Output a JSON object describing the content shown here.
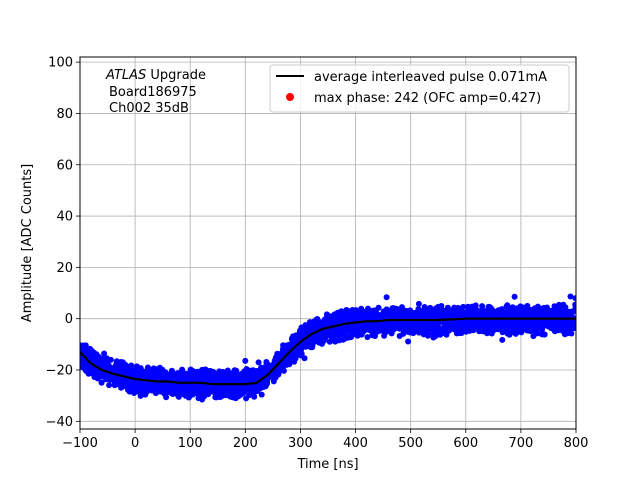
{
  "chart_data": {
    "type": "scatter",
    "title": "",
    "xlabel": "Time [ns]",
    "ylabel": "Amplitude [ADC Counts]",
    "xlim": [
      -100,
      800
    ],
    "ylim": [
      -43,
      102
    ],
    "grid": true,
    "xticks": [
      -100,
      0,
      100,
      200,
      300,
      400,
      500,
      600,
      700,
      800
    ],
    "yticks": [
      -40,
      -20,
      0,
      20,
      40,
      60,
      80,
      100
    ],
    "xtick_labels": [
      "−100",
      "0",
      "100",
      "200",
      "300",
      "400",
      "500",
      "600",
      "700",
      "800"
    ],
    "ytick_labels": [
      "−40",
      "−20",
      "0",
      "20",
      "40",
      "60",
      "80",
      "100"
    ],
    "annotation": {
      "line1_italic": "ATLAS",
      "line1_rest": " Upgrade",
      "line2": "Board186975",
      "line3": "Ch002 35dB"
    },
    "legend_placement": "top-right",
    "series": [
      {
        "name": "average interleaved pulse 0.071mA",
        "kind": "line",
        "color": "#000000",
        "x": [
          -100,
          -80,
          -60,
          -40,
          -20,
          0,
          20,
          40,
          60,
          80,
          100,
          120,
          140,
          160,
          180,
          200,
          220,
          240,
          260,
          280,
          300,
          320,
          340,
          360,
          380,
          400,
          420,
          440,
          460,
          480,
          500,
          550,
          600,
          650,
          700,
          750,
          800
        ],
        "y": [
          -13,
          -17.5,
          -20,
          -21.5,
          -22.5,
          -23.5,
          -24,
          -24.5,
          -24.5,
          -25,
          -25,
          -25,
          -25.5,
          -25.5,
          -25.5,
          -25.5,
          -25,
          -22,
          -17.5,
          -13,
          -9,
          -6,
          -4,
          -3,
          -2,
          -1.5,
          -1,
          -1,
          -0.5,
          -0.5,
          -0.5,
          -0.5,
          0,
          0,
          0,
          0,
          0
        ]
      },
      {
        "name": "",
        "kind": "scatter-band",
        "color": "#0000ff",
        "description_points": "dense measured samples around the average pulse",
        "x": [
          -100,
          -80,
          -60,
          -40,
          -20,
          0,
          20,
          40,
          60,
          80,
          100,
          120,
          140,
          160,
          180,
          200,
          220,
          240,
          260,
          280,
          300,
          320,
          340,
          360,
          380,
          400,
          420,
          440,
          460,
          480,
          500,
          550,
          600,
          650,
          700,
          750,
          800
        ],
        "y_low": [
          -19,
          -23,
          -26,
          -28,
          -29,
          -30,
          -30.5,
          -31,
          -31,
          -31.5,
          -32,
          -32,
          -32,
          -32,
          -32,
          -32,
          -31.5,
          -28.5,
          -24,
          -19.5,
          -15.5,
          -12.5,
          -10.5,
          -9.5,
          -8.5,
          -8,
          -7.5,
          -7.5,
          -7,
          -7,
          -7,
          -7,
          -6.5,
          -6.5,
          -6.5,
          -6.5,
          -6.5
        ],
        "y_high": [
          -7,
          -11.5,
          -14,
          -15.5,
          -16.5,
          -17.5,
          -18,
          -18.5,
          -18.5,
          -19,
          -19,
          -19,
          -19.5,
          -19.5,
          -19.5,
          -19.5,
          -19,
          -16,
          -11.5,
          -7,
          -3,
          0,
          2,
          3,
          4,
          4.5,
          5,
          5,
          5.5,
          5.5,
          5.5,
          5.5,
          6,
          6,
          6,
          6,
          6
        ]
      },
      {
        "name": "max phase: 242 (OFC amp=0.427)",
        "kind": "marker",
        "color": "#ff0000",
        "x": [],
        "y": []
      }
    ]
  }
}
